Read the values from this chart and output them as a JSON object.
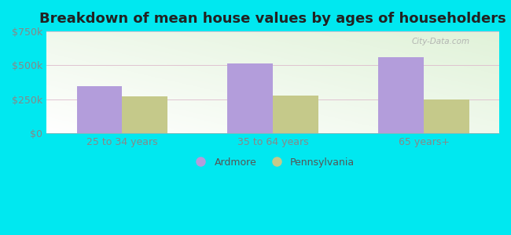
{
  "title": "Breakdown of mean house values by ages of householders",
  "categories": [
    "25 to 34 years",
    "35 to 64 years",
    "65 years+"
  ],
  "ardmore_values": [
    350000,
    515000,
    560000
  ],
  "pennsylvania_values": [
    270000,
    280000,
    250000
  ],
  "ardmore_color": "#b39ddb",
  "pennsylvania_color": "#c5c98a",
  "background_outer": "#00e8f0",
  "ylim": [
    0,
    750000
  ],
  "yticks": [
    0,
    250000,
    500000,
    750000
  ],
  "ytick_labels": [
    "$0",
    "$250k",
    "$500k",
    "$750k"
  ],
  "legend_ardmore": "Ardmore",
  "legend_pennsylvania": "Pennsylvania",
  "bar_width": 0.3,
  "title_fontsize": 13,
  "tick_fontsize": 9,
  "legend_fontsize": 9,
  "watermark": "City-Data.com"
}
